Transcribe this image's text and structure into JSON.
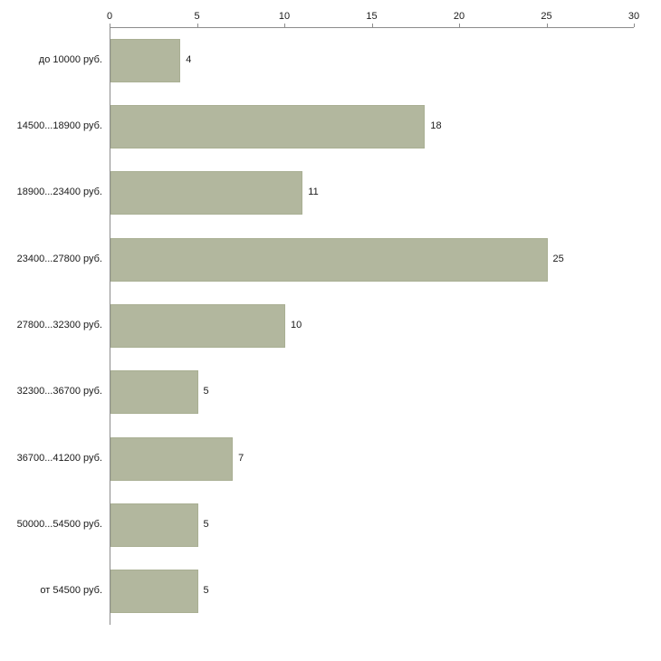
{
  "chart_data": {
    "type": "bar",
    "orientation": "horizontal",
    "title": "",
    "xlabel": "",
    "ylabel": "",
    "categories": [
      "до 10000 руб.",
      "14500...18900 руб.",
      "18900...23400 руб.",
      "23400...27800 руб.",
      "27800...32300 руб.",
      "32300...36700 руб.",
      "36700...41200 руб.",
      "50000...54500 руб.",
      "от 54500 руб."
    ],
    "values": [
      4,
      18,
      11,
      25,
      10,
      5,
      7,
      5,
      5
    ],
    "xlim": [
      0,
      30
    ],
    "x_ticks": [
      0,
      5,
      10,
      15,
      20,
      25,
      30
    ],
    "grid": false,
    "legend": "none",
    "bar_color": "#b2b79e",
    "bar_border_color": "#a9af93",
    "axis_color": "#8c8c8c",
    "text_color": "#1a1a1a",
    "background_color": "#ffffff"
  }
}
